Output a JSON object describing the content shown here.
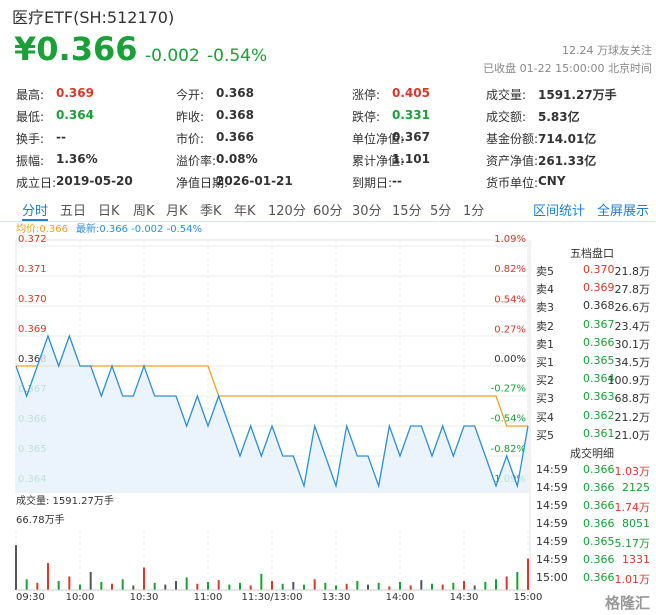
{
  "header": {
    "title": "医疗ETF(SH:512170)",
    "price": "¥0.366",
    "change": "-0.002",
    "change_pct": "-0.54%",
    "followers": "12.24 万球友关注",
    "status": "已收盘 01-22 15:00:00 北京时间"
  },
  "stats": [
    {
      "label": "最高:",
      "value": "0.369",
      "color": "#d8382a"
    },
    {
      "label": "今开:",
      "value": "0.368"
    },
    {
      "label": "涨停:",
      "value": "0.405",
      "color": "#d8382a"
    },
    {
      "label": "成交量:",
      "value": "1591.27万手"
    },
    {
      "label": "最低:",
      "value": "0.364",
      "color": "#1aa037"
    },
    {
      "label": "昨收:",
      "value": "0.368"
    },
    {
      "label": "跌停:",
      "value": "0.331",
      "color": "#1aa037"
    },
    {
      "label": "成交额:",
      "value": "5.83亿"
    },
    {
      "label": "换手:",
      "value": "--"
    },
    {
      "label": "市价:",
      "value": "0.366"
    },
    {
      "label": "单位净值:",
      "value": "0.367"
    },
    {
      "label": "基金份额:",
      "value": "714.01亿"
    },
    {
      "label": "振幅:",
      "value": "1.36%"
    },
    {
      "label": "溢价率:",
      "value": "0.08%"
    },
    {
      "label": "累计净值:",
      "value": "1.101"
    },
    {
      "label": "资产净值:",
      "value": "261.33亿"
    },
    {
      "label": "成立日:",
      "value": "2019-05-20"
    },
    {
      "label": "净值日期:",
      "value": "2026-01-21"
    },
    {
      "label": "到期日:",
      "value": "--"
    },
    {
      "label": "货币单位:",
      "value": "CNY"
    }
  ],
  "tabs": [
    "分时",
    "五日",
    "日K",
    "周K",
    "月K",
    "季K",
    "年K",
    "120分",
    "60分",
    "30分",
    "15分",
    "5分",
    "1分"
  ],
  "tab_links": [
    "区间统计",
    "全屏展示"
  ],
  "chart_data": [
    {
      "type": "line",
      "x": [
        0,
        5,
        10,
        15,
        20,
        25,
        30,
        35,
        40,
        45,
        50,
        55,
        60,
        65,
        70,
        75,
        80,
        85,
        90,
        95,
        100,
        105,
        110,
        115,
        120,
        125,
        130,
        135,
        140,
        145,
        150,
        155,
        160,
        165,
        170,
        175,
        180,
        185,
        190,
        195,
        200,
        205,
        210,
        215,
        220,
        225,
        230,
        235,
        240
      ],
      "xlim": [
        0,
        240
      ],
      "series": [
        {
          "name": "均价:0.366",
          "color": "#f0a020",
          "values": [
            0.368,
            0.368,
            0.368,
            0.368,
            0.368,
            0.368,
            0.368,
            0.368,
            0.368,
            0.368,
            0.368,
            0.368,
            0.368,
            0.368,
            0.368,
            0.368,
            0.368,
            0.368,
            0.368,
            0.367,
            0.367,
            0.367,
            0.367,
            0.367,
            0.367,
            0.367,
            0.367,
            0.367,
            0.367,
            0.367,
            0.367,
            0.367,
            0.367,
            0.367,
            0.367,
            0.367,
            0.367,
            0.367,
            0.367,
            0.367,
            0.367,
            0.367,
            0.367,
            0.367,
            0.367,
            0.367,
            0.366,
            0.366,
            0.366
          ]
        },
        {
          "name": "最新:0.366 -0.002 -0.54%",
          "color": "#2e8fd8",
          "values": [
            0.368,
            0.367,
            0.368,
            0.369,
            0.368,
            0.369,
            0.368,
            0.368,
            0.367,
            0.368,
            0.367,
            0.367,
            0.368,
            0.367,
            0.367,
            0.367,
            0.366,
            0.367,
            0.366,
            0.367,
            0.366,
            0.365,
            0.366,
            0.365,
            0.366,
            0.365,
            0.365,
            0.364,
            0.366,
            0.365,
            0.364,
            0.366,
            0.365,
            0.365,
            0.364,
            0.366,
            0.365,
            0.366,
            0.366,
            0.365,
            0.366,
            0.365,
            0.366,
            0.366,
            0.365,
            0.364,
            0.365,
            0.364,
            0.366
          ]
        }
      ],
      "ylim": [
        0.3638,
        0.3722
      ],
      "yticks": [
        {
          "value": 0.372,
          "label": "0.372"
        },
        {
          "value": 0.371,
          "label": "0.371"
        },
        {
          "value": 0.37,
          "label": "0.370"
        },
        {
          "value": 0.369,
          "label": "0.369"
        },
        {
          "value": 0.368,
          "label": "0.368"
        },
        {
          "value": 0.367,
          "label": "0.367"
        },
        {
          "value": 0.366,
          "label": "0.366"
        },
        {
          "value": 0.365,
          "label": "0.365"
        },
        {
          "value": 0.364,
          "label": "0.364"
        }
      ],
      "y2lim": [
        -1.145,
        1.145
      ],
      "y2ticks": [
        {
          "value": 1.09,
          "label": "1.09%"
        },
        {
          "value": 0.82,
          "label": "0.82%"
        },
        {
          "value": 0.54,
          "label": "0.54%"
        },
        {
          "value": 0.27,
          "label": "0.27%"
        },
        {
          "value": 0,
          "label": "0.00%"
        },
        {
          "value": -0.27,
          "label": "-0.27%"
        },
        {
          "value": -0.54,
          "label": "-0.54%"
        },
        {
          "value": -0.82,
          "label": "-0.82%"
        },
        {
          "value": -1.09,
          "label": "-1.09%"
        }
      ],
      "grid": true
    },
    {
      "type": "bar",
      "title": "成交量: 1591.27万手",
      "x": [
        0,
        5,
        10,
        15,
        20,
        25,
        30,
        35,
        40,
        45,
        50,
        55,
        60,
        65,
        70,
        75,
        80,
        85,
        90,
        95,
        100,
        105,
        110,
        115,
        120,
        125,
        130,
        135,
        140,
        145,
        150,
        155,
        160,
        165,
        170,
        175,
        180,
        185,
        190,
        195,
        200,
        205,
        210,
        215,
        220,
        225,
        230,
        235,
        240
      ],
      "xlim": [
        0,
        240
      ],
      "xticks": [
        {
          "value": 0,
          "label": "09:30"
        },
        {
          "value": 30,
          "label": "10:00"
        },
        {
          "value": 60,
          "label": "10:30"
        },
        {
          "value": 90,
          "label": "11:00"
        },
        {
          "value": 120,
          "label": "11:30/13:00"
        },
        {
          "value": 150,
          "label": "13:30"
        },
        {
          "value": 180,
          "label": "14:00"
        },
        {
          "value": 210,
          "label": "14:30"
        },
        {
          "value": 240,
          "label": "15:00"
        }
      ],
      "values": [
        50,
        12,
        8,
        30,
        10,
        15,
        6,
        20,
        9,
        7,
        12,
        5,
        25,
        8,
        6,
        10,
        14,
        7,
        9,
        11,
        6,
        8,
        5,
        18,
        10,
        7,
        9,
        6,
        12,
        8,
        5,
        7,
        10,
        6,
        8,
        4,
        9,
        5,
        11,
        7,
        6,
        8,
        10,
        5,
        9,
        12,
        15,
        20,
        35
      ],
      "ylim": [
        0,
        66.78
      ],
      "yticks": [
        {
          "value": 66.78,
          "label": "66.78万手"
        }
      ],
      "colors": {
        "up": "#d8382a",
        "down": "#1aa037",
        "flat": "#555555"
      }
    }
  ],
  "order_book": {
    "title": "五档盘口",
    "rows": [
      {
        "label": "卖5",
        "price": "0.370",
        "volume": "21.8万",
        "color": "#d8382a"
      },
      {
        "label": "卖4",
        "price": "0.369",
        "volume": "27.8万",
        "color": "#d8382a"
      },
      {
        "label": "卖3",
        "price": "0.368",
        "volume": "26.6万",
        "color": "#333333"
      },
      {
        "label": "卖2",
        "price": "0.367",
        "volume": "23.4万",
        "color": "#1aa037"
      },
      {
        "label": "卖1",
        "price": "0.366",
        "volume": "30.1万",
        "color": "#1aa037"
      },
      {
        "label": "买1",
        "price": "0.365",
        "volume": "34.5万",
        "color": "#1aa037"
      },
      {
        "label": "买2",
        "price": "0.364",
        "volume": "100.9万",
        "color": "#1aa037"
      },
      {
        "label": "买3",
        "price": "0.363",
        "volume": "68.8万",
        "color": "#1aa037"
      },
      {
        "label": "买4",
        "price": "0.362",
        "volume": "21.2万",
        "color": "#1aa037"
      },
      {
        "label": "买5",
        "price": "0.361",
        "volume": "21.0万",
        "color": "#1aa037"
      }
    ]
  },
  "trades": {
    "title": "成交明细",
    "rows": [
      {
        "time": "14:59",
        "price": "0.366",
        "volume": "1.03万",
        "color": "#d8382a"
      },
      {
        "time": "14:59",
        "price": "0.366",
        "volume": "2125",
        "color": "#1aa037"
      },
      {
        "time": "14:59",
        "price": "0.366",
        "volume": "1.74万",
        "color": "#d8382a"
      },
      {
        "time": "14:59",
        "price": "0.366",
        "volume": "8051",
        "color": "#1aa037"
      },
      {
        "time": "14:59",
        "price": "0.365",
        "volume": "5.17万",
        "color": "#1aa037"
      },
      {
        "time": "14:59",
        "price": "0.366",
        "volume": "1331",
        "color": "#d8382a"
      },
      {
        "time": "15:00",
        "price": "0.366",
        "volume": "1.01万",
        "color": "#d8382a"
      }
    ]
  },
  "watermark": "格隆汇"
}
